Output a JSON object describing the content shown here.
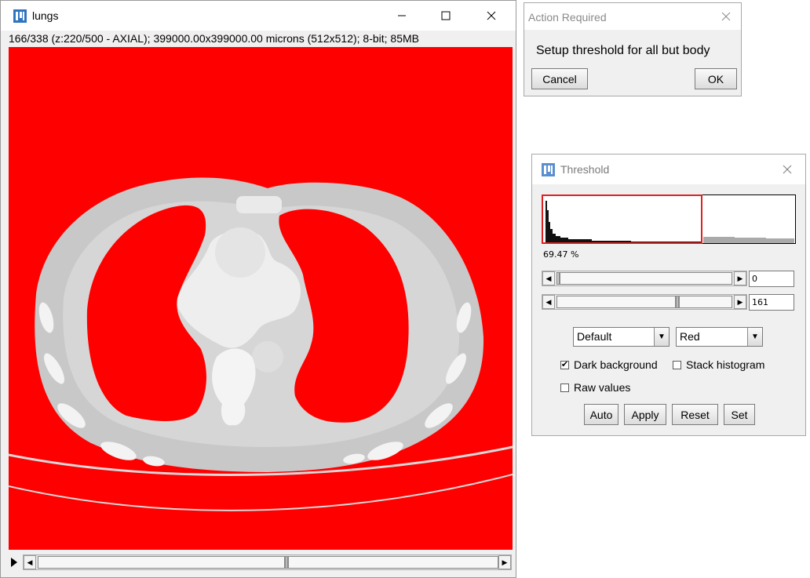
{
  "image_window": {
    "title": "lungs",
    "info": "166/338 (z:220/500 - AXIAL); 399000.00x399000.00 microns (512x512); 8-bit; 85MB",
    "icons": [
      "imagej-icon",
      "minimize-icon",
      "maximize-icon",
      "close-icon"
    ],
    "overlay_color": "#ff0000"
  },
  "action_dialog": {
    "title": "Action Required",
    "message": "Setup threshold for all but body",
    "cancel_label": "Cancel",
    "ok_label": "OK"
  },
  "threshold": {
    "title": "Threshold",
    "percent": "69.47 %",
    "lower_value": "0",
    "upper_value": "161",
    "lower_fraction": 0.0,
    "upper_fraction": 0.63,
    "method": "Default",
    "mode": "Red",
    "dark_background_label": "Dark background",
    "dark_background_checked": true,
    "stack_histogram_label": "Stack histogram",
    "stack_histogram_checked": false,
    "raw_values_label": "Raw values",
    "raw_values_checked": false,
    "buttons": {
      "auto": "Auto",
      "apply": "Apply",
      "reset": "Reset",
      "set": "Set"
    },
    "accent_color": "#e02020"
  }
}
